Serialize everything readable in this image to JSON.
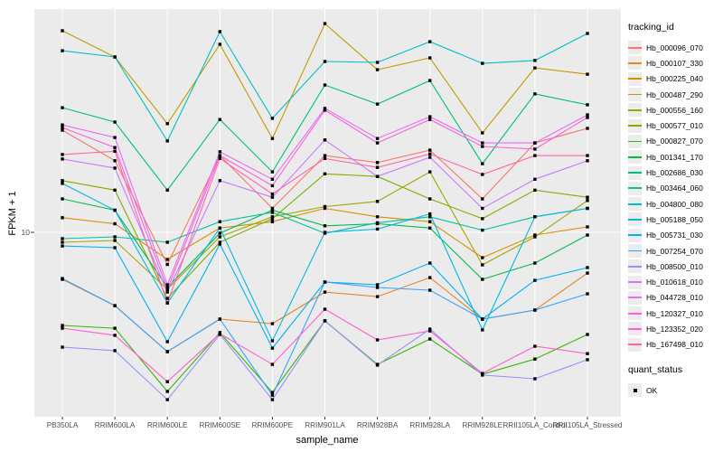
{
  "panel": {
    "bg": "#EBEBEB",
    "grid_color": "#FFFFFF",
    "tick_color": "#333333",
    "axis_text_color": "#4D4D4D"
  },
  "legend": {
    "tracking_title": "tracking_id",
    "quant_title": "quant_status",
    "quant_items": [
      {
        "label": "OK",
        "marker": "black-square"
      }
    ]
  },
  "chart_data": {
    "type": "line",
    "title": "",
    "xlabel": "sample_name",
    "ylabel": "FPKM + 1",
    "y_scale": "log10",
    "y_ticks": [
      {
        "label": "10",
        "value": 10
      }
    ],
    "grid": "major",
    "legend_position": "right",
    "point_marker": {
      "shape": "square",
      "color": "#000000"
    },
    "categories": [
      "PB350LA",
      "RRIM600LA",
      "RRIM600LE",
      "RRIM600SE",
      "RRIM600PE",
      "RRIM901LA",
      "RRIM928BA",
      "RRIM928LA",
      "RRIM928LE",
      "RRII105LA_Control",
      "RRII105LA_Stressed"
    ],
    "series": [
      {
        "name": "Hb_000096_070",
        "color": "#F8766D",
        "values": [
          25.0,
          19.0,
          7.5,
          19.9,
          12.4,
          19.9,
          18.7,
          20.9,
          13.5,
          22.3,
          25.4
        ]
      },
      {
        "name": "Hb_000107_330",
        "color": "#E88526",
        "values": [
          6.56,
          5.18,
          3.43,
          4.59,
          4.41,
          5.85,
          5.62,
          6.66,
          4.59,
          4.98,
          6.94
        ]
      },
      {
        "name": "Hb_000225_040",
        "color": "#D89000",
        "values": [
          11.4,
          10.8,
          7.84,
          10.4,
          11.0,
          12.4,
          11.5,
          11.0,
          7.97,
          9.76,
          10.5
        ]
      },
      {
        "name": "Hb_000487_290",
        "color": "#C09B00",
        "values": [
          61.0,
          48.2,
          26.5,
          54.0,
          23.2,
          65.0,
          43.0,
          47.8,
          24.4,
          43.7,
          41.3
        ]
      },
      {
        "name": "Hb_000556_160",
        "color": "#A3A500",
        "values": [
          9.15,
          9.3,
          6.0,
          9.6,
          11.5,
          12.6,
          13.2,
          17.2,
          7.47,
          9.6,
          13.3
        ]
      },
      {
        "name": "Hb_000577_010",
        "color": "#7CAE00",
        "values": [
          15.9,
          14.6,
          5.53,
          9.15,
          11.3,
          16.9,
          16.5,
          13.5,
          11.3,
          14.6,
          13.7
        ]
      },
      {
        "name": "Hb_000827_070",
        "color": "#39B600",
        "values": [
          4.34,
          4.23,
          2.4,
          4.07,
          2.38,
          4.52,
          3.06,
          3.84,
          2.8,
          3.21,
          4.0
        ]
      },
      {
        "name": "Hb_001341_170",
        "color": "#00BB4E",
        "values": [
          13.5,
          12.2,
          6.1,
          9.92,
          12.2,
          10.6,
          10.8,
          10.4,
          6.56,
          7.59,
          9.76
        ]
      },
      {
        "name": "Hb_002686_030",
        "color": "#00BF7D",
        "values": [
          30.6,
          26.9,
          14.6,
          27.5,
          17.2,
          37.5,
          31.6,
          39.0,
          18.5,
          34.6,
          31.4
        ]
      },
      {
        "name": "Hb_003464_060",
        "color": "#00C1A3",
        "values": [
          9.45,
          9.6,
          9.15,
          11.0,
          11.95,
          9.92,
          10.9,
          11.5,
          10.2,
          11.5,
          12.4
        ]
      },
      {
        "name": "Hb_004800_080",
        "color": "#00BFC4",
        "values": [
          51.0,
          48.2,
          22.7,
          60.5,
          27.8,
          46.3,
          45.9,
          55.3,
          45.5,
          46.7,
          59.5
        ]
      },
      {
        "name": "Hb_005188_050",
        "color": "#00BAE0",
        "values": [
          15.5,
          12.2,
          5.31,
          10.4,
          3.78,
          10.0,
          10.3,
          11.8,
          4.17,
          11.5,
          12.4
        ]
      },
      {
        "name": "Hb_005731_030",
        "color": "#00B0F6",
        "values": [
          8.85,
          8.71,
          3.75,
          9.0,
          3.54,
          6.4,
          6.25,
          7.59,
          4.59,
          6.5,
          7.29
        ]
      },
      {
        "name": "Hb_007254_070",
        "color": "#35A2FF",
        "values": [
          6.61,
          5.18,
          3.43,
          4.59,
          2.32,
          6.4,
          6.1,
          5.95,
          4.59,
          4.98,
          5.76
        ]
      },
      {
        "name": "Hb_008500_010",
        "color": "#9590FF",
        "values": [
          3.57,
          3.46,
          2.23,
          4.0,
          2.23,
          4.52,
          3.04,
          4.2,
          2.78,
          2.69,
          3.19
        ]
      },
      {
        "name": "Hb_010618_010",
        "color": "#C77CFF",
        "values": [
          19.3,
          17.8,
          5.85,
          15.9,
          13.7,
          22.9,
          16.5,
          19.6,
          12.4,
          16.1,
          19.0
        ]
      },
      {
        "name": "Hb_044728_010",
        "color": "#E76BF3",
        "values": [
          26.2,
          23.4,
          6.25,
          20.6,
          16.1,
          30.4,
          23.2,
          28.2,
          22.3,
          22.3,
          28.7
        ]
      },
      {
        "name": "Hb_120327_010",
        "color": "#FA62DB",
        "values": [
          25.6,
          21.4,
          6.0,
          19.9,
          15.2,
          29.9,
          22.3,
          27.5,
          21.6,
          21.1,
          28.0
        ]
      },
      {
        "name": "Hb_123352_020",
        "color": "#FF61CC",
        "values": [
          4.23,
          3.97,
          2.62,
          4.03,
          3.06,
          5.02,
          3.81,
          4.13,
          2.82,
          3.6,
          3.37
        ]
      },
      {
        "name": "Hb_167498_010",
        "color": "#FF65AE",
        "values": [
          20.1,
          20.7,
          5.31,
          19.4,
          14.1,
          19.4,
          17.9,
          20.2,
          16.8,
          19.9,
          19.9
        ]
      }
    ]
  }
}
